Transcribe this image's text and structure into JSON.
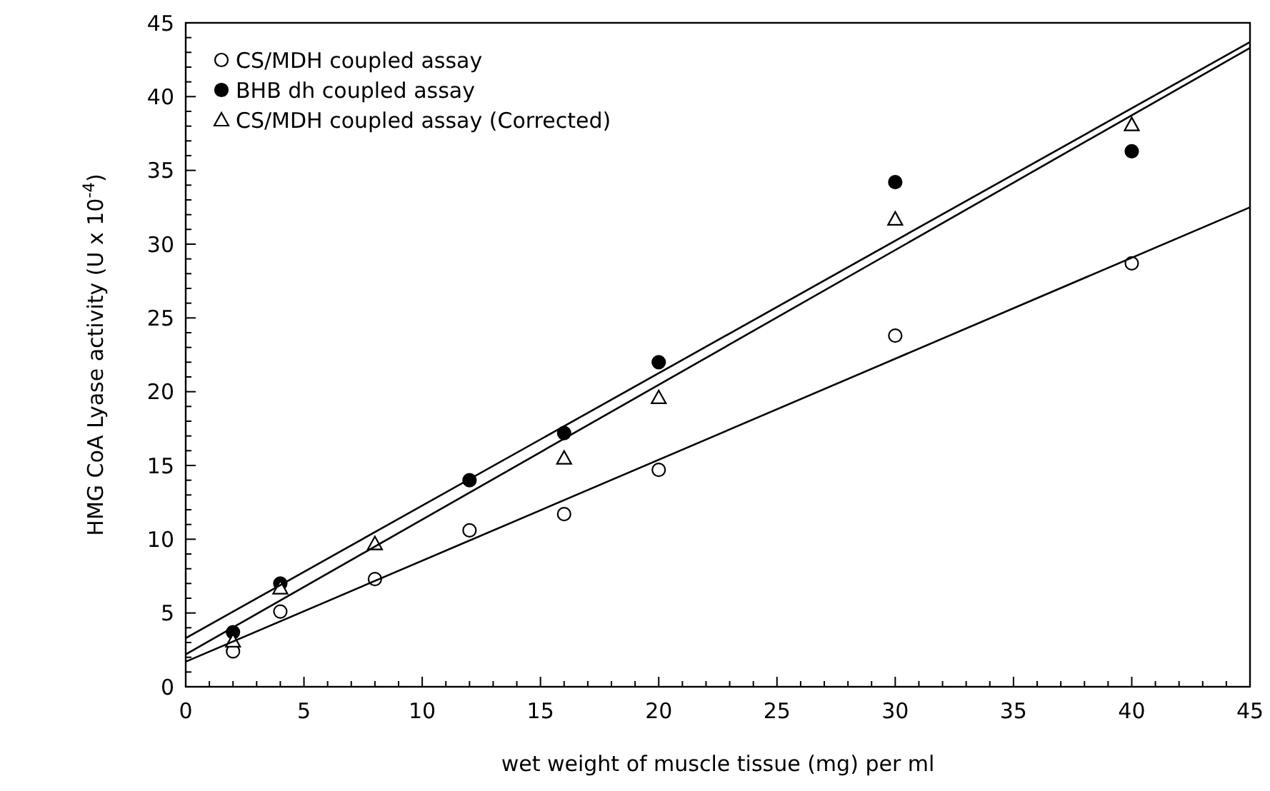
{
  "chart_data": {
    "type": "scatter",
    "xlabel": "wet weight of muscle tissue (mg) per ml",
    "ylabel": "HMG CoA Lyase activity (U x 10$^{-4}$)",
    "xlim": [
      0,
      45
    ],
    "ylim": [
      0,
      45
    ],
    "xticks": [
      0,
      {
        "value": 1,
        "label": null
      },
      {
        "value": 2,
        "label": null
      },
      {
        "value": 3,
        "label": null
      },
      {
        "value": 4,
        "label": null
      },
      5,
      {
        "value": 6,
        "label": null
      },
      {
        "value": 7,
        "label": null
      },
      {
        "value": 8,
        "label": null
      },
      {
        "value": 9,
        "label": null
      },
      10,
      {
        "value": 11,
        "label": null
      },
      {
        "value": 12,
        "label": null
      },
      {
        "value": 13,
        "label": null
      },
      {
        "value": 14,
        "label": null
      },
      15,
      {
        "value": 16,
        "label": null
      },
      {
        "value": 17,
        "label": null
      },
      {
        "value": 18,
        "label": null
      },
      {
        "value": 19,
        "label": null
      },
      20,
      {
        "value": 21,
        "label": null
      },
      {
        "value": 22,
        "label": null
      },
      {
        "value": 23,
        "label": null
      },
      {
        "value": 24,
        "label": null
      },
      25,
      {
        "value": 26,
        "label": null
      },
      {
        "value": 27,
        "label": null
      },
      {
        "value": 28,
        "label": null
      },
      {
        "value": 29,
        "label": null
      },
      30,
      {
        "value": 31,
        "label": null
      },
      {
        "value": 32,
        "label": null
      },
      {
        "value": 33,
        "label": null
      },
      {
        "value": 34,
        "label": null
      },
      35,
      {
        "value": 36,
        "label": null
      },
      {
        "value": 37,
        "label": null
      },
      {
        "value": 38,
        "label": null
      },
      {
        "value": 39,
        "label": null
      },
      40,
      {
        "value": 41,
        "label": null
      },
      {
        "value": 42,
        "label": null
      },
      {
        "value": 43,
        "label": null
      },
      {
        "value": 44,
        "label": null
      },
      45
    ],
    "yticks": [
      0,
      {
        "value": 1,
        "label": null
      },
      {
        "value": 2,
        "label": null
      },
      {
        "value": 3,
        "label": null
      },
      {
        "value": 4,
        "label": null
      },
      5,
      {
        "value": 6,
        "label": null
      },
      {
        "value": 7,
        "label": null
      },
      {
        "value": 8,
        "label": null
      },
      {
        "value": 9,
        "label": null
      },
      10,
      {
        "value": 11,
        "label": null
      },
      {
        "value": 12,
        "label": null
      },
      {
        "value": 13,
        "label": null
      },
      {
        "value": 14,
        "label": null
      },
      15,
      {
        "value": 16,
        "label": null
      },
      {
        "value": 17,
        "label": null
      },
      {
        "value": 18,
        "label": null
      },
      {
        "value": 19,
        "label": null
      },
      20,
      {
        "value": 21,
        "label": null
      },
      {
        "value": 22,
        "label": null
      },
      {
        "value": 23,
        "label": null
      },
      {
        "value": 24,
        "label": null
      },
      25,
      {
        "value": 26,
        "label": null
      },
      {
        "value": 27,
        "label": null
      },
      {
        "value": 28,
        "label": null
      },
      {
        "value": 29,
        "label": null
      },
      30,
      {
        "value": 31,
        "label": null
      },
      {
        "value": 32,
        "label": null
      },
      {
        "value": 33,
        "label": null
      },
      {
        "value": 34,
        "label": null
      },
      35,
      {
        "value": 36,
        "label": null
      },
      {
        "value": 37,
        "label": null
      },
      {
        "value": 38,
        "label": null
      },
      {
        "value": 39,
        "label": null
      },
      40,
      {
        "value": 41,
        "label": null
      },
      {
        "value": 42,
        "label": null
      },
      {
        "value": 43,
        "label": null
      },
      {
        "value": 44,
        "label": null
      },
      45
    ],
    "grid": false,
    "legend": "top left",
    "series": [
      {
        "name": "CS/MDH coupled assay",
        "color": "#000000",
        "marker": "circle",
        "x": [
          2,
          4,
          8,
          12,
          16,
          20,
          30,
          40
        ],
        "values": [
          2.4,
          5.1,
          7.3,
          10.6,
          11.7,
          14.7,
          23.8,
          28.7
        ]
      },
      {
        "name": "BHB dh coupled assay",
        "color": "#000000",
        "marker": "circle",
        "x": [
          2,
          4,
          12,
          16,
          20,
          30,
          40
        ],
        "values": [
          3.7,
          7.0,
          14.0,
          17.2,
          22.0,
          34.2,
          36.3
        ]
      },
      {
        "name": "CS/MDH coupled assay (Corrected)",
        "color": "#000000",
        "marker": "triangle",
        "x": [
          2,
          4,
          8,
          16,
          20,
          30,
          40
        ],
        "values": [
          3.1,
          6.7,
          9.7,
          15.5,
          19.6,
          31.7,
          38.1
        ]
      },
      {
        "type": "line",
        "color": "#000000",
        "x": [
          0,
          45
        ],
        "values": [
          1.7,
          32.5
        ]
      },
      {
        "type": "line",
        "color": "#000000",
        "x": [
          0,
          45
        ],
        "values": [
          3.3,
          43.7
        ]
      },
      {
        "type": "line",
        "color": "#000000",
        "x": [
          0,
          45
        ],
        "values": [
          2.2,
          43.3
        ]
      }
    ]
  }
}
